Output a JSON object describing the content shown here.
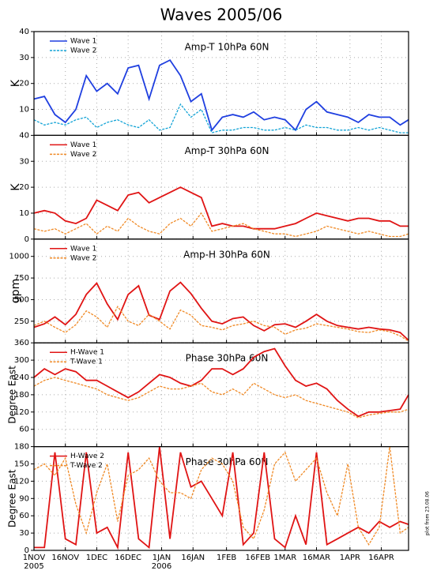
{
  "title": "Waves 2005/06",
  "note": "plot from 23.08.06",
  "x_axis": {
    "x": [
      0,
      5,
      10,
      15,
      20,
      25,
      30,
      35,
      40,
      45,
      50,
      55,
      60,
      65,
      70,
      75,
      80,
      85,
      90,
      95,
      100,
      105,
      110,
      115,
      120,
      125,
      130,
      135,
      140,
      145,
      150,
      155,
      160,
      165,
      170,
      175,
      179
    ],
    "xlim": [
      0,
      179
    ],
    "xticks": [
      {
        "value": 0,
        "label": "1NOV"
      },
      {
        "value": 15,
        "label": "16NOV"
      },
      {
        "value": 30,
        "label": "1DEC"
      },
      {
        "value": 45,
        "label": "16DEC"
      },
      {
        "value": 61,
        "label": "1JAN"
      },
      {
        "value": 76,
        "label": "16JAN"
      },
      {
        "value": 92,
        "label": "1FEB"
      },
      {
        "value": 107,
        "label": "16FEB"
      },
      {
        "value": 120,
        "label": "1MAR"
      },
      {
        "value": 135,
        "label": "16MAR"
      },
      {
        "value": 151,
        "label": "1APR"
      },
      {
        "value": 166,
        "label": "16APR"
      }
    ],
    "year_labels": [
      {
        "value": 0,
        "label": "2005"
      },
      {
        "value": 61,
        "label": "2006"
      }
    ]
  },
  "chart_data": [
    {
      "type": "line",
      "title": "Amp-T 10hPa 60N",
      "ylabel": "K",
      "ylim": [
        0,
        40
      ],
      "yticks": [
        10,
        20,
        30,
        40
      ],
      "grid": true,
      "legend": "top-left",
      "series": [
        {
          "name": "Wave 1",
          "color": "#1f3fe0",
          "dash": "solid",
          "values": [
            14,
            15,
            8,
            5,
            10,
            23,
            17,
            20,
            16,
            26,
            27,
            14,
            27,
            29,
            23,
            13,
            16,
            2,
            7,
            8,
            7,
            9,
            6,
            7,
            6,
            2,
            10,
            13,
            9,
            8,
            7,
            5,
            8,
            7,
            7,
            4,
            6
          ]
        },
        {
          "name": "Wave 2",
          "color": "#12a3d6",
          "dash": "dashed",
          "values": [
            6,
            4,
            5,
            4,
            6,
            7,
            3,
            5,
            6,
            4,
            3,
            6,
            2,
            3,
            12,
            7,
            10,
            1,
            2,
            2,
            3,
            3,
            2,
            2,
            3,
            2,
            4,
            3,
            3,
            2,
            2,
            3,
            2,
            3,
            2,
            1,
            1
          ]
        }
      ]
    },
    {
      "type": "line",
      "title": "Amp-T 30hPa 60N",
      "ylabel": "K",
      "ylim": [
        0,
        40
      ],
      "yticks": [
        0,
        10,
        20,
        30,
        40
      ],
      "grid": true,
      "legend": "top-left",
      "series": [
        {
          "name": "Wave 1",
          "color": "#e01414",
          "dash": "solid",
          "values": [
            10,
            11,
            10,
            7,
            6,
            8,
            15,
            13,
            11,
            17,
            18,
            14,
            16,
            18,
            20,
            18,
            16,
            5,
            6,
            5,
            5,
            4,
            4,
            4,
            5,
            6,
            8,
            10,
            9,
            8,
            7,
            8,
            8,
            7,
            7,
            5,
            5
          ]
        },
        {
          "name": "Wave 2",
          "color": "#f08a26",
          "dash": "dashed",
          "values": [
            4,
            3,
            4,
            2,
            4,
            6,
            2,
            5,
            3,
            8,
            5,
            3,
            2,
            6,
            8,
            5,
            10,
            3,
            4,
            5,
            6,
            4,
            3,
            2,
            2,
            1,
            2,
            3,
            5,
            4,
            3,
            2,
            3,
            2,
            1,
            1,
            2
          ]
        }
      ]
    },
    {
      "type": "line",
      "title": "Amp-H 30hPa 60N",
      "ylabel": "gpm",
      "ylim": [
        0,
        1200
      ],
      "yticks": [
        250,
        500,
        750,
        1000
      ],
      "grid": true,
      "legend": "top-left",
      "series": [
        {
          "name": "Wave 1",
          "color": "#e01414",
          "dash": "solid",
          "values": [
            180,
            220,
            300,
            210,
            330,
            560,
            690,
            450,
            270,
            560,
            660,
            320,
            270,
            600,
            700,
            570,
            400,
            250,
            220,
            280,
            300,
            200,
            140,
            210,
            220,
            180,
            250,
            330,
            250,
            200,
            180,
            160,
            180,
            160,
            150,
            120,
            30
          ]
        },
        {
          "name": "Wave 2",
          "color": "#f08a26",
          "dash": "dashed",
          "values": [
            200,
            250,
            180,
            120,
            210,
            370,
            300,
            180,
            420,
            250,
            200,
            330,
            250,
            160,
            380,
            320,
            200,
            180,
            150,
            200,
            220,
            250,
            200,
            180,
            100,
            150,
            170,
            220,
            200,
            180,
            160,
            130,
            120,
            150,
            130,
            80,
            20
          ]
        }
      ]
    },
    {
      "type": "line",
      "title": "Phase 30hPa 60N",
      "ylabel": "Degree East",
      "ylim": [
        0,
        360
      ],
      "yticks": [
        60,
        120,
        180,
        240,
        300,
        360
      ],
      "grid": true,
      "legend": "top-left",
      "series": [
        {
          "name": "H-Wave 1",
          "color": "#e01414",
          "dash": "solid",
          "values": [
            240,
            270,
            250,
            270,
            260,
            230,
            230,
            210,
            190,
            170,
            190,
            220,
            250,
            240,
            220,
            210,
            230,
            270,
            270,
            250,
            270,
            310,
            330,
            340,
            280,
            230,
            210,
            220,
            200,
            160,
            130,
            105,
            120,
            120,
            125,
            130,
            180
          ]
        },
        {
          "name": "T-Wave 1",
          "color": "#f08a26",
          "dash": "dashed",
          "values": [
            210,
            230,
            240,
            230,
            220,
            210,
            200,
            180,
            170,
            160,
            170,
            190,
            210,
            200,
            200,
            210,
            220,
            190,
            180,
            200,
            180,
            220,
            200,
            180,
            170,
            180,
            160,
            150,
            140,
            130,
            120,
            100,
            110,
            115,
            120,
            120,
            130
          ]
        }
      ]
    },
    {
      "type": "line",
      "title": "Phase 30hPa 60N",
      "ylabel": "Degree East",
      "ylim": [
        0,
        180
      ],
      "yticks": [
        0,
        30,
        60,
        90,
        120,
        150,
        180
      ],
      "grid": true,
      "legend": "top-left",
      "series": [
        {
          "name": "H-Wave 2",
          "color": "#e01414",
          "dash": "solid",
          "values": [
            5,
            5,
            170,
            20,
            10,
            170,
            30,
            40,
            5,
            170,
            20,
            5,
            180,
            20,
            170,
            110,
            120,
            90,
            60,
            170,
            10,
            30,
            170,
            20,
            5,
            60,
            10,
            170,
            10,
            20,
            30,
            40,
            30,
            50,
            40,
            50,
            45
          ]
        },
        {
          "name": "T-Wave 2",
          "color": "#f08a26",
          "dash": "dashed",
          "values": [
            140,
            150,
            130,
            160,
            80,
            30,
            100,
            150,
            50,
            130,
            140,
            160,
            120,
            100,
            100,
            90,
            140,
            160,
            150,
            120,
            40,
            20,
            70,
            150,
            170,
            120,
            140,
            160,
            100,
            60,
            150,
            40,
            10,
            40,
            180,
            30,
            40
          ]
        }
      ]
    }
  ]
}
